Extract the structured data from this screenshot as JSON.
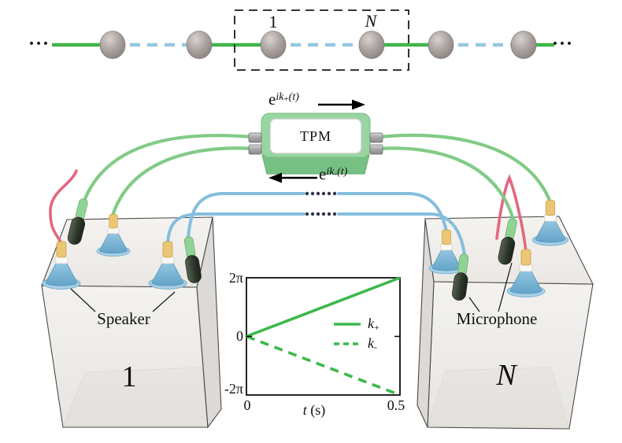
{
  "lattice": {
    "dots_left": "···",
    "dots_right": "···",
    "cell_first_label": "1",
    "cell_last_label": "N"
  },
  "tpm": {
    "label": "TPM",
    "forward_phase": {
      "base": "e",
      "exp": "ik",
      "sub": "+",
      "tail": "(t)"
    },
    "backward_phase": {
      "base": "e",
      "exp": "ik",
      "sub": "-",
      "tail": "(t)"
    }
  },
  "cavities": {
    "left_label": "1",
    "right_label": "N",
    "speaker_callout": "Speaker",
    "microphone_callout": "Microphone"
  },
  "chart_data": {
    "type": "line",
    "title": "",
    "xlabel": "t (s)",
    "xlabel_var": "t",
    "xlabel_unit": " (s)",
    "ylabel": "",
    "xlim": [
      0,
      0.5
    ],
    "ylim_pi": [
      -2,
      2
    ],
    "x_ticks": [
      "0",
      "0.5"
    ],
    "y_ticks": [
      "2π",
      "0",
      "-2π"
    ],
    "grid": false,
    "legend_position": "middle-right",
    "series": [
      {
        "name": "k+",
        "legend_base": "k",
        "legend_sub": "+",
        "style": "solid",
        "color": "#3db84b",
        "x": [
          0,
          0.5
        ],
        "y_pi": [
          0,
          2
        ]
      },
      {
        "name": "k-",
        "legend_base": "k",
        "legend_sub": "-",
        "style": "dashed",
        "color": "#3db84b",
        "x": [
          0,
          0.5
        ],
        "y_pi": [
          0,
          -2
        ]
      }
    ]
  },
  "colors": {
    "bond_green": "#3eb549",
    "bond_blue": "#96c7e2",
    "cable_green": "#82cb87",
    "cable_blue": "#85bedd",
    "cable_red": "#e2687f",
    "tpm_green": "#97d6a0",
    "plot_green": "#3db84b"
  }
}
